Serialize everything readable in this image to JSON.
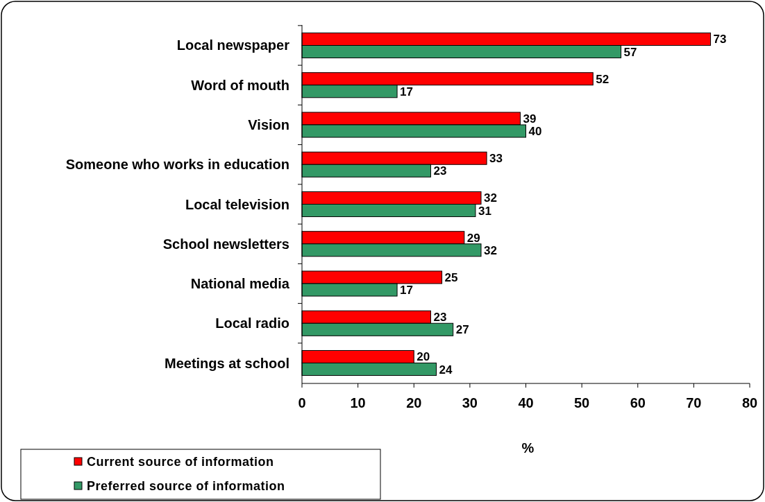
{
  "chart_data": {
    "type": "bar",
    "orientation": "horizontal",
    "xlabel": "%",
    "categories": [
      "Local newspaper",
      "Word of mouth",
      "Vision",
      "Someone who works in education",
      "Local television",
      "School newsletters",
      "National media",
      "Local radio",
      "Meetings at school"
    ],
    "series": [
      {
        "name": "Current source of information",
        "color": "#ff0000",
        "values": [
          73,
          52,
          39,
          33,
          32,
          29,
          25,
          23,
          20
        ]
      },
      {
        "name": "Preferred source of information",
        "color": "#339966",
        "values": [
          57,
          17,
          40,
          23,
          31,
          32,
          17,
          27,
          24
        ]
      }
    ],
    "xlim": [
      0,
      80
    ],
    "xticks": [
      0,
      10,
      20,
      30,
      40,
      50,
      60,
      70,
      80
    ],
    "data_labels": true,
    "grid": false,
    "legend": "bottom left"
  }
}
